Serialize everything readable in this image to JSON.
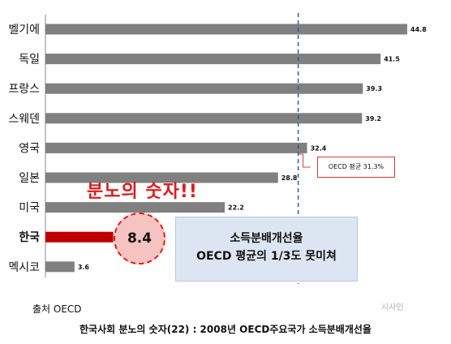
{
  "chart_data": {
    "type": "bar",
    "orientation": "horizontal",
    "categories": [
      "벨기에",
      "독일",
      "프랑스",
      "스웨덴",
      "영국",
      "일본",
      "미국",
      "한국",
      "멕시코"
    ],
    "values": [
      44.8,
      41.5,
      39.3,
      39.2,
      32.4,
      28.8,
      22.2,
      8.4,
      3.6
    ],
    "value_labels": [
      "44.8",
      "41.5",
      "39.3",
      "39.2",
      "32.4",
      "28.8",
      "22.2",
      "",
      "3.6"
    ],
    "highlight_category": "한국",
    "xlim": [
      0,
      46
    ],
    "reference_line": {
      "value": 31.3,
      "label": "OECD 평균 31.3%"
    },
    "bar_color": "#808080",
    "highlight_color": "#c00000",
    "reference_color": "#2e5aa8"
  },
  "annotations": {
    "slogan": "분노의 숫자!!",
    "korea_value": "8.4",
    "note_line1": "소득분배개선율",
    "note_line2": "OECD 평균의 1/3도 못미쳐"
  },
  "source": "출처 OECD",
  "watermark": "시사인",
  "caption": "한국사회 분노의 숫자(22) : 2008년 OECD주요국가 소득분배개선율"
}
